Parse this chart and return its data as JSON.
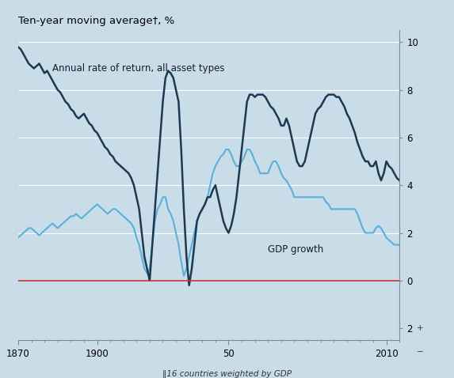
{
  "title": "Ten-year moving average†, %",
  "footnote": "‖16 countries weighted by GDP",
  "bg_color": "#c9dde8",
  "dark_line_color": "#1b3a52",
  "light_line_color": "#5ab0d8",
  "zero_line_color": "#cc3333",
  "label_annual": "Annual rate of return, all asset types",
  "label_gdp": "GDP growth",
  "xlim": [
    1870,
    2015
  ],
  "ylim": [
    -2.5,
    10.5
  ],
  "annual_return": {
    "years": [
      1870,
      1871,
      1872,
      1873,
      1874,
      1875,
      1876,
      1877,
      1878,
      1879,
      1880,
      1881,
      1882,
      1883,
      1884,
      1885,
      1886,
      1887,
      1888,
      1889,
      1890,
      1891,
      1892,
      1893,
      1894,
      1895,
      1896,
      1897,
      1898,
      1899,
      1900,
      1901,
      1902,
      1903,
      1904,
      1905,
      1906,
      1907,
      1908,
      1909,
      1910,
      1911,
      1912,
      1913,
      1914,
      1915,
      1916,
      1917,
      1918,
      1919,
      1920,
      1921,
      1922,
      1923,
      1924,
      1925,
      1926,
      1927,
      1928,
      1929,
      1930,
      1931,
      1932,
      1933,
      1934,
      1935,
      1936,
      1937,
      1938,
      1939,
      1940,
      1941,
      1942,
      1943,
      1944,
      1945,
      1946,
      1947,
      1948,
      1949,
      1950,
      1951,
      1952,
      1953,
      1954,
      1955,
      1956,
      1957,
      1958,
      1959,
      1960,
      1961,
      1962,
      1963,
      1964,
      1965,
      1966,
      1967,
      1968,
      1969,
      1970,
      1971,
      1972,
      1973,
      1974,
      1975,
      1976,
      1977,
      1978,
      1979,
      1980,
      1981,
      1982,
      1983,
      1984,
      1985,
      1986,
      1987,
      1988,
      1989,
      1990,
      1991,
      1992,
      1993,
      1994,
      1995,
      1996,
      1997,
      1998,
      1999,
      2000,
      2001,
      2002,
      2003,
      2004,
      2005,
      2006,
      2007,
      2008,
      2009,
      2010,
      2011,
      2012,
      2013,
      2014,
      2015
    ],
    "values": [
      9.8,
      9.7,
      9.5,
      9.3,
      9.1,
      9.0,
      8.9,
      9.0,
      9.1,
      8.9,
      8.7,
      8.8,
      8.6,
      8.4,
      8.2,
      8.0,
      7.9,
      7.7,
      7.5,
      7.4,
      7.2,
      7.1,
      6.9,
      6.8,
      6.9,
      7.0,
      6.8,
      6.6,
      6.5,
      6.3,
      6.2,
      6.0,
      5.8,
      5.6,
      5.5,
      5.3,
      5.2,
      5.0,
      4.9,
      4.8,
      4.7,
      4.6,
      4.5,
      4.3,
      4.0,
      3.5,
      3.0,
      2.0,
      1.0,
      0.5,
      0.0,
      1.5,
      3.0,
      4.5,
      6.0,
      7.5,
      8.5,
      8.8,
      8.7,
      8.5,
      8.0,
      7.5,
      5.5,
      3.0,
      1.0,
      -0.2,
      0.5,
      1.5,
      2.5,
      2.8,
      3.0,
      3.2,
      3.5,
      3.5,
      3.8,
      4.0,
      3.5,
      3.0,
      2.5,
      2.2,
      2.0,
      2.3,
      2.8,
      3.5,
      4.5,
      5.5,
      6.5,
      7.5,
      7.8,
      7.8,
      7.7,
      7.8,
      7.8,
      7.8,
      7.7,
      7.5,
      7.3,
      7.2,
      7.0,
      6.8,
      6.5,
      6.5,
      6.8,
      6.5,
      6.0,
      5.5,
      5.0,
      4.8,
      4.8,
      5.0,
      5.5,
      6.0,
      6.5,
      7.0,
      7.2,
      7.3,
      7.5,
      7.7,
      7.8,
      7.8,
      7.8,
      7.7,
      7.7,
      7.5,
      7.3,
      7.0,
      6.8,
      6.5,
      6.2,
      5.8,
      5.5,
      5.2,
      5.0,
      5.0,
      4.8,
      4.8,
      5.0,
      4.5,
      4.2,
      4.5,
      5.0,
      4.8,
      4.7,
      4.5,
      4.3,
      4.2
    ]
  },
  "gdp_growth": {
    "years": [
      1870,
      1871,
      1872,
      1873,
      1874,
      1875,
      1876,
      1877,
      1878,
      1879,
      1880,
      1881,
      1882,
      1883,
      1884,
      1885,
      1886,
      1887,
      1888,
      1889,
      1890,
      1891,
      1892,
      1893,
      1894,
      1895,
      1896,
      1897,
      1898,
      1899,
      1900,
      1901,
      1902,
      1903,
      1904,
      1905,
      1906,
      1907,
      1908,
      1909,
      1910,
      1911,
      1912,
      1913,
      1914,
      1915,
      1916,
      1917,
      1918,
      1919,
      1920,
      1921,
      1922,
      1923,
      1924,
      1925,
      1926,
      1927,
      1928,
      1929,
      1930,
      1931,
      1932,
      1933,
      1934,
      1935,
      1936,
      1937,
      1938,
      1939,
      1940,
      1941,
      1942,
      1943,
      1944,
      1945,
      1946,
      1947,
      1948,
      1949,
      1950,
      1951,
      1952,
      1953,
      1954,
      1955,
      1956,
      1957,
      1958,
      1959,
      1960,
      1961,
      1962,
      1963,
      1964,
      1965,
      1966,
      1967,
      1968,
      1969,
      1970,
      1971,
      1972,
      1973,
      1974,
      1975,
      1976,
      1977,
      1978,
      1979,
      1980,
      1981,
      1982,
      1983,
      1984,
      1985,
      1986,
      1987,
      1988,
      1989,
      1990,
      1991,
      1992,
      1993,
      1994,
      1995,
      1996,
      1997,
      1998,
      1999,
      2000,
      2001,
      2002,
      2003,
      2004,
      2005,
      2006,
      2007,
      2008,
      2009,
      2010,
      2011,
      2012,
      2013,
      2014,
      2015
    ],
    "values": [
      1.8,
      1.9,
      2.0,
      2.1,
      2.2,
      2.2,
      2.1,
      2.0,
      1.9,
      2.0,
      2.1,
      2.2,
      2.3,
      2.4,
      2.3,
      2.2,
      2.3,
      2.4,
      2.5,
      2.6,
      2.7,
      2.7,
      2.8,
      2.7,
      2.6,
      2.7,
      2.8,
      2.9,
      3.0,
      3.1,
      3.2,
      3.1,
      3.0,
      2.9,
      2.8,
      2.9,
      3.0,
      3.0,
      2.9,
      2.8,
      2.7,
      2.6,
      2.5,
      2.4,
      2.2,
      1.8,
      1.5,
      1.0,
      0.5,
      0.3,
      0.5,
      1.5,
      2.5,
      3.0,
      3.2,
      3.5,
      3.5,
      3.0,
      2.8,
      2.5,
      2.0,
      1.5,
      0.8,
      0.2,
      0.5,
      1.0,
      1.5,
      2.0,
      2.5,
      2.8,
      3.0,
      3.2,
      3.5,
      4.0,
      4.5,
      4.8,
      5.0,
      5.2,
      5.3,
      5.5,
      5.5,
      5.3,
      5.0,
      4.8,
      4.8,
      5.0,
      5.2,
      5.5,
      5.5,
      5.3,
      5.0,
      4.8,
      4.5,
      4.5,
      4.5,
      4.5,
      4.8,
      5.0,
      5.0,
      4.8,
      4.5,
      4.3,
      4.2,
      4.0,
      3.8,
      3.5,
      3.5,
      3.5,
      3.5,
      3.5,
      3.5,
      3.5,
      3.5,
      3.5,
      3.5,
      3.5,
      3.5,
      3.3,
      3.2,
      3.0,
      3.0,
      3.0,
      3.0,
      3.0,
      3.0,
      3.0,
      3.0,
      3.0,
      3.0,
      2.8,
      2.5,
      2.2,
      2.0,
      2.0,
      2.0,
      2.0,
      2.2,
      2.3,
      2.2,
      2.0,
      1.8,
      1.7,
      1.6,
      1.5,
      1.5,
      1.5
    ]
  }
}
